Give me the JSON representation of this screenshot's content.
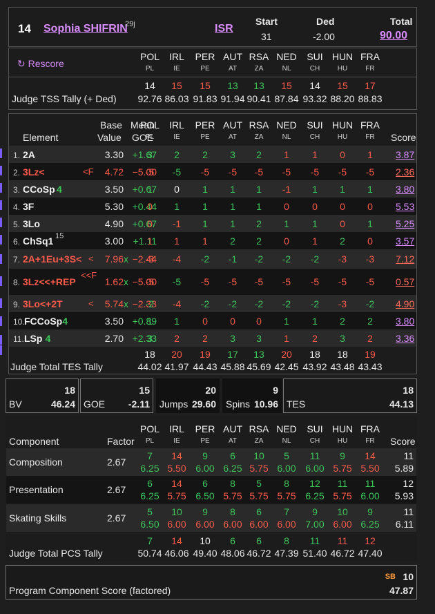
{
  "header": {
    "rank": "14",
    "skater": "Sophia SHIFRIN",
    "skater_sup": "29j",
    "nation": "ISR",
    "start_label": "Start",
    "start_value": "31",
    "ded_label": "Ded",
    "ded_value": "-2.00",
    "total_label": "Total",
    "total_value": "90.00"
  },
  "judges": [
    {
      "name": "POL",
      "code": "PL"
    },
    {
      "name": "IRL",
      "code": "IE"
    },
    {
      "name": "PER",
      "code": "PE"
    },
    {
      "name": "AUT",
      "code": "AT"
    },
    {
      "name": "RSA",
      "code": "ZA"
    },
    {
      "name": "NED",
      "code": "NL"
    },
    {
      "name": "SUI",
      "code": "CH"
    },
    {
      "name": "HUN",
      "code": "HU"
    },
    {
      "name": "FRA",
      "code": "FR"
    }
  ],
  "rescore_label": "↻ Rescore",
  "tss": {
    "label": "Judge TSS Tally (+ Ded)",
    "ranks": [
      {
        "v": "14",
        "c": "white"
      },
      {
        "v": "15",
        "c": "red"
      },
      {
        "v": "15",
        "c": "red"
      },
      {
        "v": "13",
        "c": "green"
      },
      {
        "v": "13",
        "c": "green"
      },
      {
        "v": "15",
        "c": "red"
      },
      {
        "v": "14",
        "c": "white"
      },
      {
        "v": "15",
        "c": "red"
      },
      {
        "v": "17",
        "c": "red"
      }
    ],
    "values": [
      "92.76",
      "86.03",
      "91.83",
      "91.94",
      "90.41",
      "87.84",
      "93.32",
      "88.20",
      "88.83"
    ]
  },
  "elements_header": {
    "element": "Element",
    "base1": "Base",
    "base2": "Value",
    "goe1": "Mean",
    "goe2": "GOE",
    "score": "Score"
  },
  "elements": [
    {
      "num": "1.",
      "name": "2A",
      "flag": "",
      "base": "3.30",
      "x": "",
      "goe": "+1.67",
      "goec": "green",
      "namec": "white",
      "j": [
        [
          "3",
          "green"
        ],
        [
          "2",
          "green"
        ],
        [
          "2",
          "green"
        ],
        [
          "3",
          "green"
        ],
        [
          "2",
          "green"
        ],
        [
          "1",
          "red"
        ],
        [
          "1",
          "red"
        ],
        [
          "0",
          "red"
        ],
        [
          "1",
          "red"
        ]
      ],
      "score": "3.87"
    },
    {
      "num": "2.",
      "name": "3Lz<",
      "flag": "<F",
      "base": "4.72",
      "x": "",
      "goe": "−5.00",
      "goec": "red",
      "namec": "red",
      "j": [
        [
          "-5",
          "red"
        ],
        [
          "-5",
          "green"
        ],
        [
          "-5",
          "red"
        ],
        [
          "-5",
          "red"
        ],
        [
          "-5",
          "red"
        ],
        [
          "-5",
          "red"
        ],
        [
          "-5",
          "red"
        ],
        [
          "-5",
          "red"
        ],
        [
          "-5",
          "red"
        ]
      ],
      "score": "2.36"
    },
    {
      "num": "3.",
      "name": "CCoSp",
      "level": "4",
      "flag": "",
      "base": "3.50",
      "x": "",
      "goe": "+0.67",
      "goec": "green",
      "namec": "white",
      "j": [
        [
          "1",
          "green"
        ],
        [
          "0",
          "white"
        ],
        [
          "1",
          "green"
        ],
        [
          "1",
          "green"
        ],
        [
          "1",
          "green"
        ],
        [
          "-1",
          "red"
        ],
        [
          "1",
          "green"
        ],
        [
          "1",
          "green"
        ],
        [
          "1",
          "green"
        ]
      ],
      "score": "3.80"
    },
    {
      "num": "4.",
      "name": "3F",
      "flag": "",
      "base": "5.30",
      "x": "",
      "goe": "+0.44",
      "goec": "green",
      "namec": "white",
      "j": [
        [
          "0",
          "red"
        ],
        [
          "1",
          "green"
        ],
        [
          "1",
          "green"
        ],
        [
          "1",
          "green"
        ],
        [
          "1",
          "green"
        ],
        [
          "0",
          "red"
        ],
        [
          "0",
          "red"
        ],
        [
          "0",
          "red"
        ],
        [
          "0",
          "red"
        ]
      ],
      "score": "5.53"
    },
    {
      "num": "5.",
      "name": "3Lo",
      "flag": "",
      "base": "4.90",
      "x": "",
      "goe": "+0.67",
      "goec": "green",
      "namec": "white",
      "j": [
        [
          "0",
          "red"
        ],
        [
          "-1",
          "red"
        ],
        [
          "1",
          "green"
        ],
        [
          "1",
          "green"
        ],
        [
          "2",
          "green"
        ],
        [
          "1",
          "green"
        ],
        [
          "1",
          "green"
        ],
        [
          "0",
          "red"
        ],
        [
          "1",
          "green"
        ]
      ],
      "score": "5.25"
    },
    {
      "num": "6.",
      "name": "ChSq1",
      "sup": "15",
      "flag": "",
      "base": "3.00",
      "x": "",
      "goe": "+1.11",
      "goec": "green",
      "namec": "white",
      "j": [
        [
          "1",
          "red"
        ],
        [
          "1",
          "red"
        ],
        [
          "1",
          "red"
        ],
        [
          "2",
          "green"
        ],
        [
          "2",
          "green"
        ],
        [
          "0",
          "red"
        ],
        [
          "1",
          "red"
        ],
        [
          "2",
          "green"
        ],
        [
          "0",
          "red"
        ]
      ],
      "score": "3.57"
    },
    {
      "num": "7.",
      "name": "2A+1Eu+3S<",
      "flag": "<",
      "base": "7.96",
      "x": "x",
      "goe": "−2.44",
      "goec": "red",
      "namec": "red",
      "j": [
        [
          "-3",
          "red"
        ],
        [
          "-4",
          "red"
        ],
        [
          "-2",
          "green"
        ],
        [
          "-1",
          "green"
        ],
        [
          "-2",
          "green"
        ],
        [
          "-2",
          "green"
        ],
        [
          "-2",
          "green"
        ],
        [
          "-3",
          "red"
        ],
        [
          "-3",
          "red"
        ]
      ],
      "score": "7.12"
    },
    {
      "num": "8.",
      "name": "3Lz<<+REP",
      "flag": "<<F",
      "base": "1.62",
      "x": "x",
      "goe": "−5.00",
      "goec": "red",
      "namec": "red",
      "j": [
        [
          "-5",
          "red"
        ],
        [
          "-5",
          "green"
        ],
        [
          "-5",
          "red"
        ],
        [
          "-5",
          "red"
        ],
        [
          "-5",
          "red"
        ],
        [
          "-5",
          "red"
        ],
        [
          "-5",
          "red"
        ],
        [
          "-5",
          "red"
        ],
        [
          "-5",
          "red"
        ]
      ],
      "score": "0.57"
    },
    {
      "num": "9.",
      "name": "3Lo<+2T",
      "flag": "<",
      "base": "5.74",
      "x": "x",
      "goe": "−2.33",
      "goec": "red",
      "namec": "red",
      "j": [
        [
          "-2",
          "green"
        ],
        [
          "-4",
          "red"
        ],
        [
          "-2",
          "green"
        ],
        [
          "-2",
          "green"
        ],
        [
          "-2",
          "green"
        ],
        [
          "-2",
          "green"
        ],
        [
          "-2",
          "green"
        ],
        [
          "-3",
          "red"
        ],
        [
          "-2",
          "green"
        ]
      ],
      "score": "4.90"
    },
    {
      "num": "10.",
      "name": "FCCoSp",
      "level": "4",
      "flag": "",
      "base": "3.50",
      "x": "",
      "goe": "+0.89",
      "goec": "green",
      "namec": "white",
      "j": [
        [
          "1",
          "green"
        ],
        [
          "1",
          "green"
        ],
        [
          "0",
          "red"
        ],
        [
          "0",
          "red"
        ],
        [
          "0",
          "red"
        ],
        [
          "1",
          "green"
        ],
        [
          "1",
          "green"
        ],
        [
          "2",
          "green"
        ],
        [
          "2",
          "green"
        ]
      ],
      "score": "3.80"
    },
    {
      "num": "11.",
      "name": "LSp",
      "level": "4",
      "flag": "",
      "base": "2.70",
      "x": "",
      "goe": "+2.33",
      "goec": "green",
      "namec": "white",
      "j": [
        [
          "3",
          "green"
        ],
        [
          "2",
          "red"
        ],
        [
          "2",
          "red"
        ],
        [
          "3",
          "green"
        ],
        [
          "3",
          "green"
        ],
        [
          "1",
          "red"
        ],
        [
          "2",
          "red"
        ],
        [
          "3",
          "green"
        ],
        [
          "2",
          "red"
        ]
      ],
      "score": "3.36"
    }
  ],
  "tes": {
    "label": "Judge Total TES Tally",
    "ranks": [
      {
        "v": "18",
        "c": "white"
      },
      {
        "v": "20",
        "c": "red"
      },
      {
        "v": "19",
        "c": "red"
      },
      {
        "v": "17",
        "c": "green"
      },
      {
        "v": "13",
        "c": "green"
      },
      {
        "v": "20",
        "c": "red"
      },
      {
        "v": "18",
        "c": "white"
      },
      {
        "v": "18",
        "c": "white"
      },
      {
        "v": "19",
        "c": "red"
      }
    ],
    "values": [
      "44.02",
      "41.97",
      "44.43",
      "45.88",
      "45.69",
      "42.45",
      "43.92",
      "43.48",
      "43.43"
    ]
  },
  "summary": {
    "bv_label": "BV",
    "bv_rank": "18",
    "bv_value": "46.24",
    "goe_label": "GOE",
    "goe_rank": "15",
    "goe_value": "-2.11",
    "jumps_label": "Jumps",
    "jumps_rank": "20",
    "jumps_value": "29.60",
    "spins_label": "Spins",
    "spins_rank": "9",
    "spins_value": "10.96",
    "tes_label": "TES",
    "tes_rank": "18",
    "tes_value": "44.13"
  },
  "pcs_header": {
    "component": "Component",
    "factor": "Factor",
    "score": "Score"
  },
  "components": [
    {
      "name": "Composition",
      "factor": "2.67",
      "ranks": [
        [
          "7",
          "green"
        ],
        [
          "14",
          "red"
        ],
        [
          "9",
          "green"
        ],
        [
          "6",
          "green"
        ],
        [
          "10",
          "green"
        ],
        [
          "5",
          "green"
        ],
        [
          "11",
          "green"
        ],
        [
          "9",
          "green"
        ],
        [
          "14",
          "red"
        ]
      ],
      "values": [
        [
          "6.25",
          "green"
        ],
        [
          "5.50",
          "red"
        ],
        [
          "6.00",
          "green"
        ],
        [
          "6.25",
          "green"
        ],
        [
          "5.75",
          "red"
        ],
        [
          "6.00",
          "green"
        ],
        [
          "6.00",
          "green"
        ],
        [
          "5.75",
          "red"
        ],
        [
          "5.50",
          "red"
        ]
      ],
      "rank": "11",
      "score": "5.89"
    },
    {
      "name": "Presentation",
      "factor": "2.67",
      "ranks": [
        [
          "6",
          "green"
        ],
        [
          "14",
          "red"
        ],
        [
          "6",
          "green"
        ],
        [
          "8",
          "green"
        ],
        [
          "5",
          "green"
        ],
        [
          "8",
          "green"
        ],
        [
          "12",
          "green"
        ],
        [
          "11",
          "green"
        ],
        [
          "11",
          "green"
        ]
      ],
      "values": [
        [
          "6.25",
          "green"
        ],
        [
          "5.75",
          "red"
        ],
        [
          "6.50",
          "green"
        ],
        [
          "5.75",
          "red"
        ],
        [
          "5.75",
          "red"
        ],
        [
          "5.75",
          "red"
        ],
        [
          "6.25",
          "green"
        ],
        [
          "5.75",
          "red"
        ],
        [
          "6.00",
          "green"
        ]
      ],
      "rank": "12",
      "score": "5.93"
    },
    {
      "name": "Skating Skills",
      "factor": "2.67",
      "ranks": [
        [
          "5",
          "green"
        ],
        [
          "10",
          "green"
        ],
        [
          "9",
          "green"
        ],
        [
          "8",
          "green"
        ],
        [
          "6",
          "green"
        ],
        [
          "7",
          "green"
        ],
        [
          "9",
          "green"
        ],
        [
          "10",
          "green"
        ],
        [
          "9",
          "green"
        ]
      ],
      "values": [
        [
          "6.50",
          "green"
        ],
        [
          "6.00",
          "red"
        ],
        [
          "6.00",
          "red"
        ],
        [
          "6.00",
          "red"
        ],
        [
          "6.00",
          "red"
        ],
        [
          "6.00",
          "red"
        ],
        [
          "7.00",
          "green"
        ],
        [
          "6.00",
          "red"
        ],
        [
          "6.25",
          "green"
        ]
      ],
      "rank": "11",
      "score": "6.11"
    }
  ],
  "pcs_tally": {
    "label": "Judge Total PCS Tally",
    "ranks": [
      {
        "v": "7",
        "c": "green"
      },
      {
        "v": "14",
        "c": "red"
      },
      {
        "v": "10",
        "c": "white"
      },
      {
        "v": "6",
        "c": "green"
      },
      {
        "v": "6",
        "c": "green"
      },
      {
        "v": "8",
        "c": "green"
      },
      {
        "v": "11",
        "c": "green"
      },
      {
        "v": "11",
        "c": "red"
      },
      {
        "v": "12",
        "c": "red"
      }
    ],
    "values": [
      "50.74",
      "46.06",
      "49.40",
      "48.06",
      "46.72",
      "47.39",
      "51.40",
      "46.72",
      "47.40"
    ]
  },
  "pcs_total": {
    "label": "Program Component Score (factored)",
    "sb": "SB",
    "rank": "10",
    "value": "47.87"
  }
}
